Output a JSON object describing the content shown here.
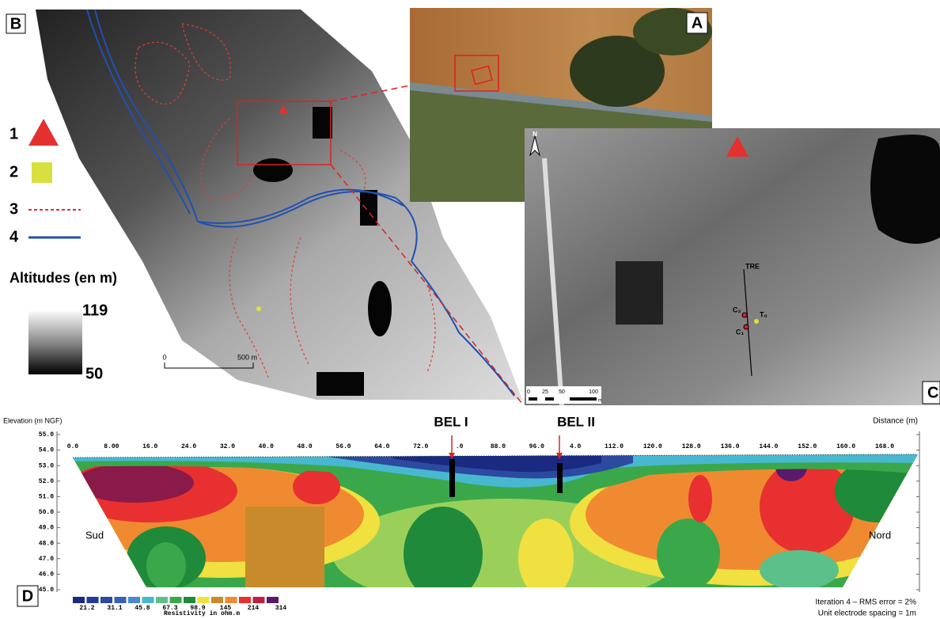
{
  "panel_b": {
    "letter": "B",
    "legend": [
      {
        "number": "1"
      },
      {
        "number": "2"
      },
      {
        "number": "3"
      },
      {
        "number": "4"
      }
    ],
    "altitude_title": "Altitudes (en m)",
    "altitude_max": "119",
    "altitude_min": "50",
    "scale_start": "0",
    "scale_end": "500 m"
  },
  "panel_a": {
    "letter": "A"
  },
  "panel_c": {
    "letter": "C",
    "north": "N",
    "profile": "TRE",
    "points": [
      "C₂",
      "T₀",
      "C₁"
    ],
    "scale": [
      "0",
      "25",
      "50",
      "100",
      "m"
    ]
  },
  "panel_d": {
    "letter": "D",
    "y_title": "Elevation (m NGF)",
    "x_title": "Distance (m)",
    "y_ticks": [
      "55.0",
      "54.0",
      "53.0",
      "52.0",
      "51.0",
      "50.0",
      "49.0",
      "48.0",
      "47.0",
      "46.0",
      "45.0"
    ],
    "x_ticks": [
      "0.0",
      "8.00",
      "16.0",
      "24.0",
      "32.0",
      "40.0",
      "48.0",
      "56.0",
      "64.0",
      "72.0",
      ".0",
      "88.0",
      "96.0",
      "4.0",
      "112.0",
      "120.0",
      "128.0",
      "136.0",
      "144.0",
      "152.0",
      "160.0",
      "168.0"
    ],
    "boreholes": [
      "BEL I",
      "BEL II"
    ],
    "left_label": "Sud",
    "right_label": "Nord",
    "colorbar_labels": [
      "21.2",
      "31.1",
      "45.8",
      "67.3",
      "98.9",
      "145",
      "214",
      "314"
    ],
    "colorbar_title": "Resistivity in ohm.m",
    "notes": [
      "Iteration 4 – RMS error = 2%",
      "Unit electrode spacing = 1m"
    ]
  }
}
